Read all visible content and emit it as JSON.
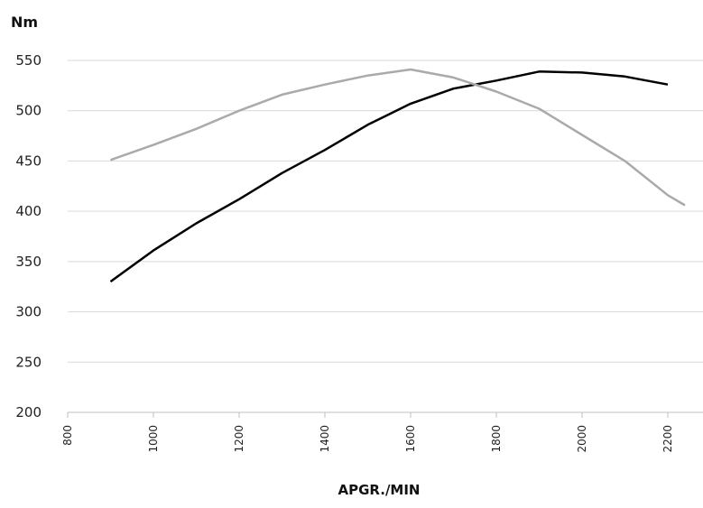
{
  "chart_data": {
    "type": "line",
    "title": "",
    "ylabel": "Nm",
    "xlabel": "APGR./MIN",
    "xlim": [
      800,
      2250
    ],
    "ylim": [
      200,
      550
    ],
    "x_ticks": [
      800,
      1000,
      1200,
      1400,
      1600,
      1800,
      2000,
      2200
    ],
    "y_ticks": [
      200,
      250,
      300,
      350,
      400,
      450,
      500,
      550
    ],
    "grid": true,
    "series": [
      {
        "color": "#000000",
        "points": [
          [
            900,
            330
          ],
          [
            1000,
            361
          ],
          [
            1100,
            388
          ],
          [
            1200,
            412
          ],
          [
            1300,
            438
          ],
          [
            1400,
            461
          ],
          [
            1500,
            486
          ],
          [
            1600,
            507
          ],
          [
            1700,
            522
          ],
          [
            1800,
            530
          ],
          [
            1900,
            539
          ],
          [
            2000,
            538
          ],
          [
            2100,
            534
          ],
          [
            2200,
            526
          ]
        ]
      },
      {
        "color": "#aaaaaa",
        "points": [
          [
            900,
            451
          ],
          [
            1000,
            466
          ],
          [
            1100,
            482
          ],
          [
            1200,
            500
          ],
          [
            1300,
            516
          ],
          [
            1400,
            526
          ],
          [
            1500,
            535
          ],
          [
            1600,
            541
          ],
          [
            1700,
            533
          ],
          [
            1800,
            519
          ],
          [
            1900,
            502
          ],
          [
            2000,
            476
          ],
          [
            2100,
            450
          ],
          [
            2200,
            416
          ],
          [
            2240,
            406
          ]
        ]
      }
    ]
  }
}
